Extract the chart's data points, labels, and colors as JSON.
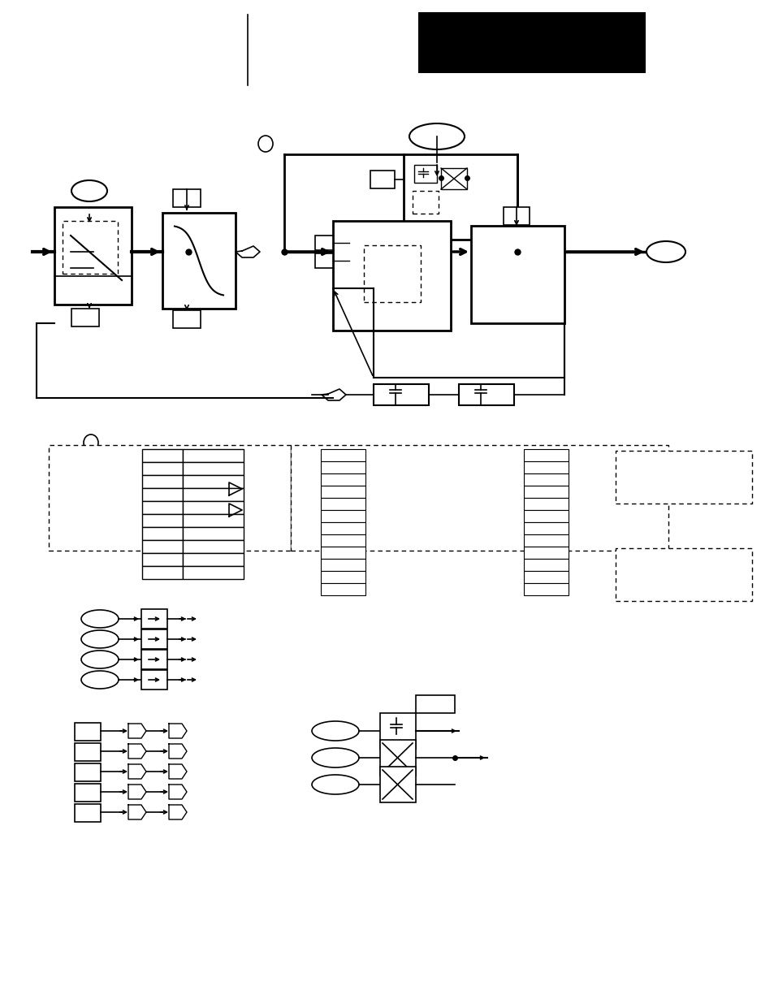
{
  "bg_color": "#ffffff",
  "fig_width": 9.54,
  "fig_height": 12.35
}
